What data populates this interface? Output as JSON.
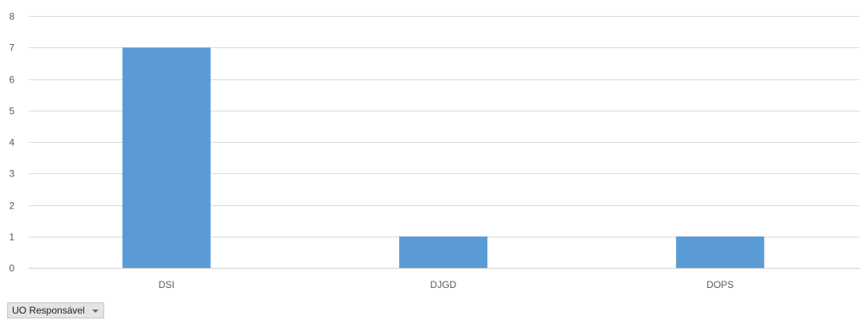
{
  "chart_data": {
    "type": "bar",
    "categories": [
      "DSI",
      "DJGD",
      "DOPS"
    ],
    "values": [
      7,
      1,
      1
    ],
    "title": "",
    "xlabel": "",
    "ylabel": "",
    "ylim": [
      0,
      8
    ],
    "yticks": [
      "0",
      "1",
      "2",
      "3",
      "4",
      "5",
      "6",
      "7",
      "8"
    ],
    "grid": true,
    "bar_color": "#5b9bd5"
  },
  "field_button": {
    "label": "UO Responsável",
    "icon": "chevron-down-icon"
  }
}
